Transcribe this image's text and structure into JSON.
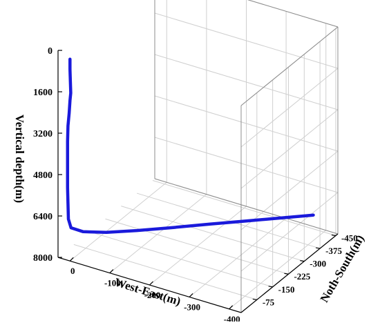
{
  "chart_data": {
    "type": "line3d",
    "xlabel": "West-East(m)",
    "ylabel": "Noth-South(m)",
    "zlabel": "Vertical depth(m)",
    "x_ticks": [
      "0",
      "-100",
      "-200",
      "-300",
      "-400"
    ],
    "y_ticks": [
      "-75",
      "-150",
      "-225",
      "-300",
      "-375",
      "-450"
    ],
    "z_ticks": [
      "0",
      "1600",
      "3200",
      "4800",
      "6400",
      "8000"
    ],
    "xlim": [
      30,
      -430
    ],
    "ylim": [
      0,
      -460
    ],
    "zlim": [
      0,
      8000
    ],
    "line_color": "#1a1adb",
    "grid": true,
    "series": [
      {
        "points": [
          {
            "x": 0,
            "y": 0,
            "z": 200
          },
          {
            "x": 0,
            "y": 0,
            "z": 600
          },
          {
            "x": -1,
            "y": 0,
            "z": 1100
          },
          {
            "x": -2,
            "y": 0,
            "z": 1500
          },
          {
            "x": 0,
            "y": 0,
            "z": 1800
          },
          {
            "x": 2,
            "y": 0,
            "z": 2300
          },
          {
            "x": 5,
            "y": 0,
            "z": 2800
          },
          {
            "x": 6,
            "y": 0,
            "z": 3400
          },
          {
            "x": 6,
            "y": 0,
            "z": 4000
          },
          {
            "x": 6,
            "y": 0,
            "z": 4600
          },
          {
            "x": 6,
            "y": 0,
            "z": 5200
          },
          {
            "x": 5,
            "y": 0,
            "z": 5800
          },
          {
            "x": 4,
            "y": 0,
            "z": 6400
          },
          {
            "x": 0,
            "y": -5,
            "z": 6750
          },
          {
            "x": -20,
            "y": -25,
            "z": 6940
          },
          {
            "x": -60,
            "y": -60,
            "z": 7010
          },
          {
            "x": -110,
            "y": -110,
            "z": 7040
          },
          {
            "x": -170,
            "y": -170,
            "z": 7040
          },
          {
            "x": -230,
            "y": -230,
            "z": 7030
          },
          {
            "x": -290,
            "y": -290,
            "z": 7025
          },
          {
            "x": -350,
            "y": -350,
            "z": 7020
          },
          {
            "x": -400,
            "y": -400,
            "z": 7015
          }
        ]
      }
    ]
  }
}
